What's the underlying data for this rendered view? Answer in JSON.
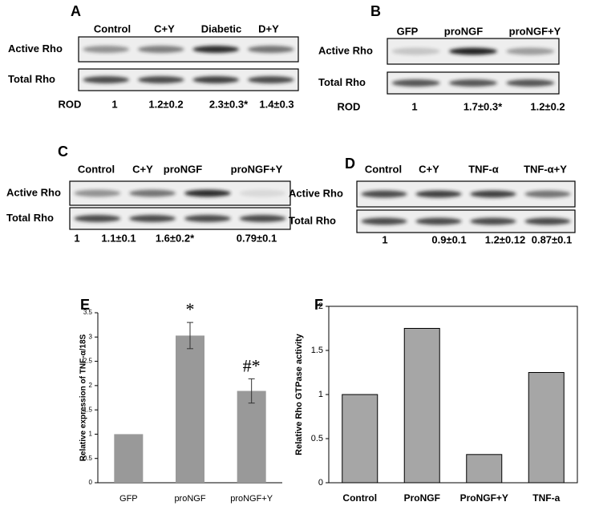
{
  "panels": [
    {
      "letter": "A",
      "lanes": [
        "Control",
        "C+Y",
        "Diabetic",
        "D+Y"
      ],
      "rows": [
        "Active Rho",
        "Total Rho"
      ],
      "rod_label": "ROD",
      "rod": [
        "1",
        "1.2±0.2",
        "2.3±0.3*",
        "1.4±0.3"
      ]
    },
    {
      "letter": "B",
      "lanes": [
        "GFP",
        "proNGF",
        "proNGF+Y"
      ],
      "rows": [
        "Active Rho",
        "Total Rho"
      ],
      "rod_label": "ROD",
      "rod": [
        "1",
        "1.7±0.3*",
        "1.2±0.2"
      ]
    },
    {
      "letter": "C",
      "lanes": [
        "Control",
        "C+Y",
        "proNGF",
        "proNGF+Y"
      ],
      "rows": [
        "Active Rho",
        "Total Rho"
      ],
      "rod": [
        "1",
        "1.1±0.1",
        "1.6±0.2*",
        "0.79±0.1"
      ]
    },
    {
      "letter": "D",
      "lanes": [
        "Control",
        "C+Y",
        "TNF-α",
        "TNF-α+Y"
      ],
      "rows": [
        "Active Rho",
        "Total Rho"
      ],
      "rod": [
        "1",
        "0.9±0.1",
        "1.2±0.12",
        "0.87±0.1"
      ]
    }
  ],
  "chart_data": [
    {
      "type": "bar",
      "letter": "E",
      "y_label": "Relative expression of TNF-α/18S",
      "categories": [
        "GFP",
        "proNGF",
        "proNGF+Y"
      ],
      "values": [
        1,
        3.03,
        1.89
      ],
      "errors": [
        null,
        0.27,
        0.25
      ],
      "annotations": [
        null,
        "*",
        "#*"
      ],
      "color": "#999999",
      "ylim": [
        0,
        3.5
      ],
      "yticks": [
        0,
        0.5,
        1,
        1.5,
        2,
        2.5,
        3,
        3.5
      ],
      "frame": false
    },
    {
      "type": "bar",
      "letter": "F",
      "y_label": "Relative Rho GTPase activity",
      "categories": [
        "Control",
        "ProNGF",
        "ProNGF+Y",
        "TNF-a"
      ],
      "values": [
        1,
        1.75,
        0.32,
        1.25
      ],
      "color": "#a6a6a6",
      "ylim": [
        0,
        2
      ],
      "yticks": [
        0,
        0.5,
        1,
        1.5,
        2
      ],
      "frame": true
    }
  ]
}
